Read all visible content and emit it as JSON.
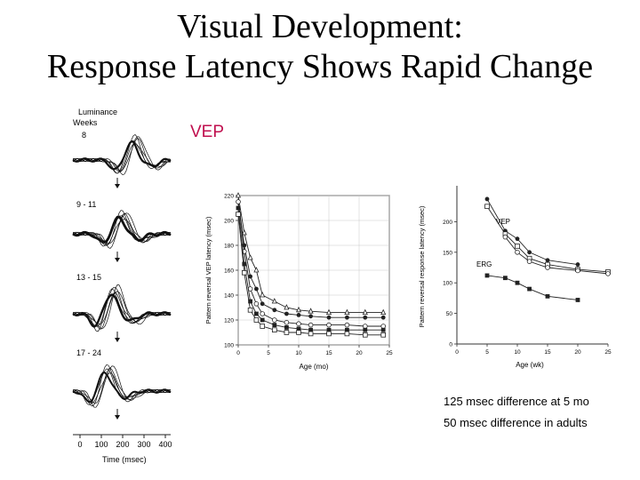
{
  "slide": {
    "title_line1": "Visual Development:",
    "title_line2": "Response Latency Shows Rapid Change",
    "vep_label": "VEP",
    "note1": "125 msec difference at 5 mo",
    "note2": "50 msec difference in adults",
    "accent_color": "#c0104f"
  },
  "waveforms": {
    "header": "Luminance",
    "weeks_label": "Weeks",
    "groups": [
      "8",
      "9 - 11",
      "13 - 15",
      "17 - 24"
    ],
    "time_ticks": [
      "0",
      "100",
      "200",
      "300",
      "400"
    ],
    "time_label": "Time (msec)"
  },
  "chart_data": [
    {
      "type": "line",
      "xlabel": "Age (mo)",
      "ylabel": "Pattern reversal VEP latency (msec)",
      "xlim": [
        0,
        25
      ],
      "ylim": [
        100,
        220
      ],
      "xticks": [
        0,
        5,
        10,
        15,
        20,
        25
      ],
      "yticks": [
        100,
        120,
        140,
        160,
        180,
        200,
        220
      ],
      "grid": true,
      "series": [
        {
          "marker": "triangle",
          "x": [
            0,
            1,
            2,
            3,
            4,
            6,
            8,
            10,
            12,
            15,
            18,
            21,
            24
          ],
          "y": [
            220,
            190,
            170,
            160,
            140,
            135,
            130,
            128,
            127,
            126,
            126,
            126,
            126
          ]
        },
        {
          "marker": "filled-circle",
          "x": [
            0,
            1,
            2,
            3,
            4,
            6,
            8,
            10,
            12,
            15,
            18,
            21,
            24
          ],
          "y": [
            215,
            180,
            155,
            145,
            133,
            128,
            125,
            124,
            123,
            122,
            122,
            122,
            122
          ]
        },
        {
          "marker": "open-circle",
          "x": [
            0,
            1,
            2,
            3,
            4,
            6,
            8,
            10,
            12,
            15,
            18,
            21,
            24
          ],
          "y": [
            215,
            175,
            145,
            133,
            125,
            120,
            118,
            117,
            116,
            116,
            116,
            115,
            115
          ]
        },
        {
          "marker": "filled-square",
          "x": [
            0,
            1,
            2,
            3,
            4,
            6,
            8,
            10,
            12,
            15,
            18,
            21,
            24
          ],
          "y": [
            210,
            165,
            135,
            125,
            120,
            116,
            114,
            113,
            112,
            112,
            112,
            112,
            112
          ]
        },
        {
          "marker": "open-square",
          "x": [
            0,
            1,
            2,
            3,
            4,
            6,
            8,
            10,
            12,
            15,
            18,
            21,
            24
          ],
          "y": [
            205,
            158,
            128,
            120,
            115,
            112,
            110,
            110,
            109,
            109,
            109,
            108,
            108
          ]
        }
      ]
    },
    {
      "type": "line",
      "xlabel": "Age (wk)",
      "ylabel": "Pattern reversal response latency (msec)",
      "xlim": [
        0,
        25
      ],
      "ylim": [
        0,
        250
      ],
      "xticks": [
        0,
        5,
        10,
        15,
        20,
        25
      ],
      "yticks": [
        0,
        50,
        100,
        150,
        200
      ],
      "grid": false,
      "annotations": [
        "VEP",
        "ERG"
      ],
      "series": [
        {
          "marker": "filled-circle",
          "x": [
            5,
            8,
            10,
            12,
            15,
            20
          ],
          "y": [
            237,
            185,
            172,
            150,
            137,
            130
          ]
        },
        {
          "marker": "open-square",
          "x": [
            5,
            8,
            10,
            12,
            15,
            20,
            25
          ],
          "y": [
            225,
            180,
            160,
            140,
            130,
            122,
            118
          ]
        },
        {
          "marker": "open-circle",
          "x": [
            8,
            10,
            12,
            15,
            20,
            25
          ],
          "y": [
            175,
            150,
            135,
            125,
            120,
            115
          ]
        },
        {
          "marker": "filled-square",
          "x": [
            5,
            8,
            10,
            12,
            15,
            20
          ],
          "y": [
            112,
            108,
            100,
            90,
            78,
            72
          ]
        }
      ]
    }
  ]
}
